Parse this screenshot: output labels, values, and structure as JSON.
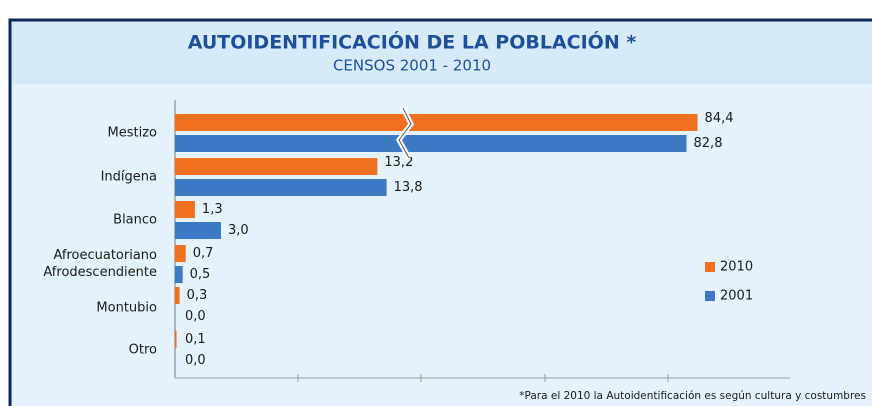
{
  "chart_data": {
    "type": "hbar",
    "title": "AUTOIDENTIFICACIÓN DE LA POBLACIÓN *",
    "subtitle": "CENSOS 2001 - 2010",
    "categories": [
      "Mestizo",
      "Indígena",
      "Blanco",
      "Afroecuatoriano\nAfrodescendiente",
      "Montubio",
      "Otro"
    ],
    "series": [
      {
        "name": "2010",
        "color": "#f07022",
        "values": [
          84.4,
          13.2,
          1.3,
          0.7,
          0.3,
          0.1
        ],
        "value_labels": [
          "84,4",
          "13,2",
          "1,3",
          "0,7",
          "0,3",
          "0,1"
        ]
      },
      {
        "name": "2001",
        "color": "#3d78c2",
        "values": [
          82.8,
          13.8,
          3.0,
          0.5,
          0.0,
          0.0
        ],
        "value_labels": [
          "82,8",
          "13,8",
          "3,0",
          "0,5",
          "0,0",
          "0,0"
        ]
      }
    ],
    "xlim": [
      0,
      86
    ],
    "xbreak": [
      15,
      42
    ],
    "legend": "right",
    "note": "*Para el 2010 la Autoidentificación es según cultura y costumbres"
  }
}
